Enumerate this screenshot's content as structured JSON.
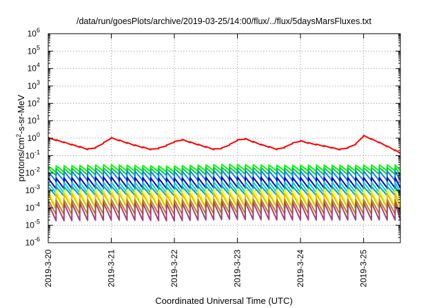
{
  "chart_data": {
    "type": "line",
    "title": "/data/run/goesPlots/archive/2019-03-25/14:00/flux/../flux/5daysMarsFluxes.txt",
    "xlabel": "Coordinated Universal Time (UTC)",
    "ylabel_parts": [
      "protons/cm",
      "2",
      "-s-sr-MeV"
    ],
    "yscale": "log",
    "ylim_exp": [
      -6,
      6
    ],
    "y_ticks": [
      {
        "base": "10",
        "exp": "-6"
      },
      {
        "base": "10",
        "exp": "-5"
      },
      {
        "base": "10",
        "exp": "-4"
      },
      {
        "base": "10",
        "exp": "-3"
      },
      {
        "base": "10",
        "exp": "-2"
      },
      {
        "base": "10",
        "exp": "-1"
      },
      {
        "base": "10",
        "exp": "0"
      },
      {
        "base": "10",
        "exp": "1"
      },
      {
        "base": "10",
        "exp": "2"
      },
      {
        "base": "10",
        "exp": "3"
      },
      {
        "base": "10",
        "exp": "4"
      },
      {
        "base": "10",
        "exp": "5"
      },
      {
        "base": "10",
        "exp": "6"
      }
    ],
    "x_range": [
      "2019-03-20 00:00",
      "2019-03-25 14:00"
    ],
    "x_ticks": [
      "2019-3-20",
      "2019-3-21",
      "2019-3-22",
      "2019-3-23",
      "2019-3-24",
      "2019-3-25"
    ],
    "grid": true,
    "cycle_hours": 3,
    "series": [
      {
        "color": "#ff0000",
        "x": [
          "2019-03-20 00:00",
          "2019-03-20 08:00",
          "2019-03-20 16:00",
          "2019-03-20 19:00",
          "2019-03-20 22:00",
          "2019-03-21 00:00",
          "2019-03-21 08:00",
          "2019-03-21 16:00",
          "2019-03-21 22:00",
          "2019-03-22 02:00",
          "2019-03-22 08:00",
          "2019-03-22 16:00",
          "2019-03-22 20:00",
          "2019-03-22 23:00",
          "2019-03-23 02:00",
          "2019-03-23 08:00",
          "2019-03-23 16:00",
          "2019-03-23 20:00",
          "2019-03-23 23:00",
          "2019-03-24 02:00",
          "2019-03-24 08:00",
          "2019-03-24 16:00",
          "2019-03-24 20:00",
          "2019-03-24 23:00",
          "2019-03-25 00:00",
          "2019-03-25 06:00",
          "2019-03-25 14:00"
        ],
        "peak": [
          1.1,
          0.5,
          0.22,
          0.35,
          0.7,
          1.1,
          0.45,
          0.22,
          0.45,
          0.95,
          0.5,
          0.22,
          0.35,
          0.7,
          1.1,
          0.5,
          0.22,
          0.45,
          0.8,
          0.6,
          0.4,
          0.22,
          0.4,
          0.7,
          1.45,
          0.6,
          0.15
        ],
        "ratio": 0.6
      },
      {
        "color": "#00ff00",
        "baseline": [
          0.025,
          0.03,
          0.025,
          0.032,
          0.028,
          0.028,
          0.03
        ],
        "ratio": 0.45
      },
      {
        "color": "#00cc33",
        "baseline": [
          0.018,
          0.02,
          0.018,
          0.022,
          0.019,
          0.02,
          0.021
        ],
        "ratio": 0.4
      },
      {
        "color": "#0080ff",
        "baseline": [
          0.012,
          0.014,
          0.012,
          0.015,
          0.013,
          0.013,
          0.013
        ],
        "ratio": 0.28
      },
      {
        "color": "#0000cc",
        "baseline": [
          0.005,
          0.006,
          0.005,
          0.006,
          0.0055,
          0.0055,
          0.0055
        ],
        "ratio": 0.25
      },
      {
        "color": "#00cccc",
        "baseline": [
          0.0028,
          0.003,
          0.0028,
          0.0032,
          0.003,
          0.003,
          0.003
        ],
        "ratio": 0.25
      },
      {
        "color": "#00a0b0",
        "baseline": [
          0.0016,
          0.0018,
          0.0016,
          0.0019,
          0.0017,
          0.0017,
          0.0017
        ],
        "ratio": 0.3
      },
      {
        "color": "#ffff00",
        "baseline": [
          0.001,
          0.0011,
          0.001,
          0.0012,
          0.0011,
          0.0011,
          0.0011
        ],
        "ratio": 0.1
      },
      {
        "color": "#e0c000",
        "baseline": [
          0.0006,
          0.0007,
          0.0006,
          0.0007,
          0.00065,
          0.00065,
          0.00065
        ],
        "ratio": 0.15
      },
      {
        "color": "#c08000",
        "baseline": [
          0.00028,
          0.0003,
          0.00028,
          0.00032,
          0.0003,
          0.0003,
          0.0003
        ],
        "ratio": 0.15
      },
      {
        "color": "#a04080",
        "baseline": [
          0.00018,
          0.0002,
          0.00018,
          0.00022,
          0.0002,
          0.0002,
          0.0002
        ],
        "ratio": 0.1
      }
    ]
  }
}
